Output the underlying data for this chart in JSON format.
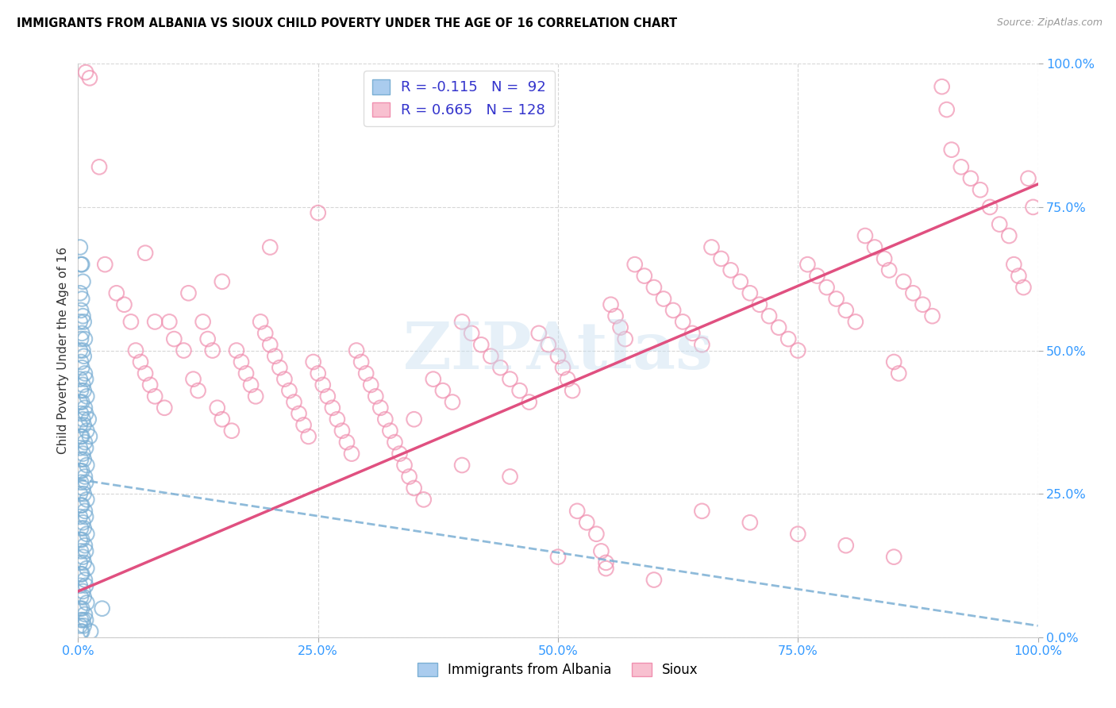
{
  "title": "IMMIGRANTS FROM ALBANIA VS SIOUX CHILD POVERTY UNDER THE AGE OF 16 CORRELATION CHART",
  "source": "Source: ZipAtlas.com",
  "ylabel": "Child Poverty Under the Age of 16",
  "xlim": [
    0.0,
    1.0
  ],
  "ylim": [
    0.0,
    1.0
  ],
  "xticks": [
    0.0,
    0.25,
    0.5,
    0.75,
    1.0
  ],
  "yticks": [
    0.0,
    0.25,
    0.5,
    0.75,
    1.0
  ],
  "xticklabels": [
    "0.0%",
    "25.0%",
    "50.0%",
    "75.0%",
    "100.0%"
  ],
  "yticklabels": [
    "0.0%",
    "25.0%",
    "50.0%",
    "75.0%",
    "100.0%"
  ],
  "albania_color": "#7bafd4",
  "albania_face": "#aaccee",
  "sioux_color": "#f090b0",
  "sioux_face": "#f8c0d0",
  "albania_R": -0.115,
  "albania_N": 92,
  "sioux_R": 0.665,
  "sioux_N": 128,
  "legend_label_albania": "Immigrants from Albania",
  "legend_label_sioux": "Sioux",
  "sioux_line_x0": 0.0,
  "sioux_line_y0": 0.08,
  "sioux_line_x1": 1.0,
  "sioux_line_y1": 0.79,
  "albania_line_x0": 0.0,
  "albania_line_y0": 0.275,
  "albania_line_x1": 1.0,
  "albania_line_y1": 0.02,
  "albania_points": [
    [
      0.002,
      0.68
    ],
    [
      0.003,
      0.65
    ],
    [
      0.002,
      0.6
    ],
    [
      0.003,
      0.57
    ],
    [
      0.002,
      0.55
    ],
    [
      0.003,
      0.52
    ],
    [
      0.002,
      0.5
    ],
    [
      0.003,
      0.48
    ],
    [
      0.002,
      0.45
    ],
    [
      0.003,
      0.43
    ],
    [
      0.002,
      0.41
    ],
    [
      0.003,
      0.39
    ],
    [
      0.002,
      0.37
    ],
    [
      0.003,
      0.35
    ],
    [
      0.002,
      0.33
    ],
    [
      0.003,
      0.31
    ],
    [
      0.002,
      0.29
    ],
    [
      0.003,
      0.27
    ],
    [
      0.002,
      0.25
    ],
    [
      0.003,
      0.23
    ],
    [
      0.002,
      0.21
    ],
    [
      0.003,
      0.19
    ],
    [
      0.002,
      0.17
    ],
    [
      0.003,
      0.15
    ],
    [
      0.002,
      0.13
    ],
    [
      0.003,
      0.11
    ],
    [
      0.002,
      0.09
    ],
    [
      0.003,
      0.07
    ],
    [
      0.002,
      0.05
    ],
    [
      0.003,
      0.03
    ],
    [
      0.002,
      0.02
    ],
    [
      0.003,
      0.01
    ],
    [
      0.004,
      0.65
    ],
    [
      0.005,
      0.62
    ],
    [
      0.004,
      0.59
    ],
    [
      0.005,
      0.56
    ],
    [
      0.004,
      0.53
    ],
    [
      0.005,
      0.5
    ],
    [
      0.004,
      0.47
    ],
    [
      0.005,
      0.44
    ],
    [
      0.004,
      0.41
    ],
    [
      0.005,
      0.38
    ],
    [
      0.004,
      0.35
    ],
    [
      0.005,
      0.32
    ],
    [
      0.004,
      0.29
    ],
    [
      0.005,
      0.26
    ],
    [
      0.004,
      0.23
    ],
    [
      0.005,
      0.2
    ],
    [
      0.004,
      0.17
    ],
    [
      0.005,
      0.14
    ],
    [
      0.004,
      0.11
    ],
    [
      0.005,
      0.08
    ],
    [
      0.004,
      0.05
    ],
    [
      0.005,
      0.03
    ],
    [
      0.004,
      0.01
    ],
    [
      0.006,
      0.55
    ],
    [
      0.007,
      0.52
    ],
    [
      0.006,
      0.49
    ],
    [
      0.007,
      0.46
    ],
    [
      0.006,
      0.43
    ],
    [
      0.007,
      0.4
    ],
    [
      0.006,
      0.37
    ],
    [
      0.007,
      0.34
    ],
    [
      0.006,
      0.31
    ],
    [
      0.007,
      0.28
    ],
    [
      0.006,
      0.25
    ],
    [
      0.007,
      0.22
    ],
    [
      0.006,
      0.19
    ],
    [
      0.007,
      0.16
    ],
    [
      0.006,
      0.13
    ],
    [
      0.007,
      0.1
    ],
    [
      0.006,
      0.07
    ],
    [
      0.007,
      0.04
    ],
    [
      0.006,
      0.02
    ],
    [
      0.008,
      0.45
    ],
    [
      0.009,
      0.42
    ],
    [
      0.008,
      0.39
    ],
    [
      0.009,
      0.36
    ],
    [
      0.008,
      0.33
    ],
    [
      0.009,
      0.3
    ],
    [
      0.008,
      0.27
    ],
    [
      0.009,
      0.24
    ],
    [
      0.008,
      0.21
    ],
    [
      0.009,
      0.18
    ],
    [
      0.008,
      0.15
    ],
    [
      0.009,
      0.12
    ],
    [
      0.008,
      0.09
    ],
    [
      0.009,
      0.06
    ],
    [
      0.008,
      0.03
    ],
    [
      0.011,
      0.38
    ],
    [
      0.012,
      0.35
    ],
    [
      0.013,
      0.01
    ],
    [
      0.025,
      0.05
    ]
  ],
  "sioux_points": [
    [
      0.008,
      0.985
    ],
    [
      0.012,
      0.975
    ],
    [
      0.022,
      0.82
    ],
    [
      0.028,
      0.65
    ],
    [
      0.04,
      0.6
    ],
    [
      0.048,
      0.58
    ],
    [
      0.055,
      0.55
    ],
    [
      0.06,
      0.5
    ],
    [
      0.065,
      0.48
    ],
    [
      0.07,
      0.46
    ],
    [
      0.075,
      0.44
    ],
    [
      0.08,
      0.42
    ],
    [
      0.09,
      0.4
    ],
    [
      0.095,
      0.55
    ],
    [
      0.1,
      0.52
    ],
    [
      0.11,
      0.5
    ],
    [
      0.115,
      0.6
    ],
    [
      0.12,
      0.45
    ],
    [
      0.125,
      0.43
    ],
    [
      0.13,
      0.55
    ],
    [
      0.135,
      0.52
    ],
    [
      0.14,
      0.5
    ],
    [
      0.145,
      0.4
    ],
    [
      0.15,
      0.38
    ],
    [
      0.16,
      0.36
    ],
    [
      0.165,
      0.5
    ],
    [
      0.17,
      0.48
    ],
    [
      0.175,
      0.46
    ],
    [
      0.18,
      0.44
    ],
    [
      0.185,
      0.42
    ],
    [
      0.19,
      0.55
    ],
    [
      0.195,
      0.53
    ],
    [
      0.2,
      0.51
    ],
    [
      0.205,
      0.49
    ],
    [
      0.21,
      0.47
    ],
    [
      0.215,
      0.45
    ],
    [
      0.22,
      0.43
    ],
    [
      0.225,
      0.41
    ],
    [
      0.23,
      0.39
    ],
    [
      0.235,
      0.37
    ],
    [
      0.24,
      0.35
    ],
    [
      0.245,
      0.48
    ],
    [
      0.25,
      0.46
    ],
    [
      0.255,
      0.44
    ],
    [
      0.26,
      0.42
    ],
    [
      0.265,
      0.4
    ],
    [
      0.27,
      0.38
    ],
    [
      0.275,
      0.36
    ],
    [
      0.28,
      0.34
    ],
    [
      0.285,
      0.32
    ],
    [
      0.29,
      0.5
    ],
    [
      0.295,
      0.48
    ],
    [
      0.3,
      0.46
    ],
    [
      0.305,
      0.44
    ],
    [
      0.31,
      0.42
    ],
    [
      0.315,
      0.4
    ],
    [
      0.32,
      0.38
    ],
    [
      0.325,
      0.36
    ],
    [
      0.33,
      0.34
    ],
    [
      0.335,
      0.32
    ],
    [
      0.34,
      0.3
    ],
    [
      0.345,
      0.28
    ],
    [
      0.35,
      0.26
    ],
    [
      0.36,
      0.24
    ],
    [
      0.37,
      0.45
    ],
    [
      0.38,
      0.43
    ],
    [
      0.39,
      0.41
    ],
    [
      0.4,
      0.55
    ],
    [
      0.41,
      0.53
    ],
    [
      0.42,
      0.51
    ],
    [
      0.43,
      0.49
    ],
    [
      0.44,
      0.47
    ],
    [
      0.45,
      0.45
    ],
    [
      0.46,
      0.43
    ],
    [
      0.47,
      0.41
    ],
    [
      0.48,
      0.53
    ],
    [
      0.49,
      0.51
    ],
    [
      0.5,
      0.49
    ],
    [
      0.505,
      0.47
    ],
    [
      0.51,
      0.45
    ],
    [
      0.515,
      0.43
    ],
    [
      0.52,
      0.22
    ],
    [
      0.53,
      0.2
    ],
    [
      0.54,
      0.18
    ],
    [
      0.545,
      0.15
    ],
    [
      0.55,
      0.13
    ],
    [
      0.555,
      0.58
    ],
    [
      0.56,
      0.56
    ],
    [
      0.565,
      0.54
    ],
    [
      0.57,
      0.52
    ],
    [
      0.58,
      0.65
    ],
    [
      0.59,
      0.63
    ],
    [
      0.6,
      0.61
    ],
    [
      0.61,
      0.59
    ],
    [
      0.62,
      0.57
    ],
    [
      0.63,
      0.55
    ],
    [
      0.64,
      0.53
    ],
    [
      0.65,
      0.51
    ],
    [
      0.66,
      0.68
    ],
    [
      0.67,
      0.66
    ],
    [
      0.68,
      0.64
    ],
    [
      0.69,
      0.62
    ],
    [
      0.7,
      0.6
    ],
    [
      0.71,
      0.58
    ],
    [
      0.72,
      0.56
    ],
    [
      0.73,
      0.54
    ],
    [
      0.74,
      0.52
    ],
    [
      0.75,
      0.5
    ],
    [
      0.76,
      0.65
    ],
    [
      0.77,
      0.63
    ],
    [
      0.78,
      0.61
    ],
    [
      0.79,
      0.59
    ],
    [
      0.8,
      0.57
    ],
    [
      0.81,
      0.55
    ],
    [
      0.82,
      0.7
    ],
    [
      0.83,
      0.68
    ],
    [
      0.84,
      0.66
    ],
    [
      0.845,
      0.64
    ],
    [
      0.85,
      0.48
    ],
    [
      0.855,
      0.46
    ],
    [
      0.86,
      0.62
    ],
    [
      0.87,
      0.6
    ],
    [
      0.88,
      0.58
    ],
    [
      0.89,
      0.56
    ],
    [
      0.9,
      0.96
    ],
    [
      0.905,
      0.92
    ],
    [
      0.91,
      0.85
    ],
    [
      0.92,
      0.82
    ],
    [
      0.93,
      0.8
    ],
    [
      0.94,
      0.78
    ],
    [
      0.95,
      0.75
    ],
    [
      0.96,
      0.72
    ],
    [
      0.97,
      0.7
    ],
    [
      0.975,
      0.65
    ],
    [
      0.98,
      0.63
    ],
    [
      0.985,
      0.61
    ],
    [
      0.99,
      0.8
    ],
    [
      0.995,
      0.75
    ],
    [
      0.07,
      0.67
    ],
    [
      0.08,
      0.55
    ],
    [
      0.15,
      0.62
    ],
    [
      0.2,
      0.68
    ],
    [
      0.25,
      0.74
    ],
    [
      0.35,
      0.38
    ],
    [
      0.4,
      0.3
    ],
    [
      0.45,
      0.28
    ],
    [
      0.5,
      0.14
    ],
    [
      0.55,
      0.12
    ],
    [
      0.6,
      0.1
    ],
    [
      0.65,
      0.22
    ],
    [
      0.7,
      0.2
    ],
    [
      0.75,
      0.18
    ],
    [
      0.8,
      0.16
    ],
    [
      0.85,
      0.14
    ]
  ]
}
